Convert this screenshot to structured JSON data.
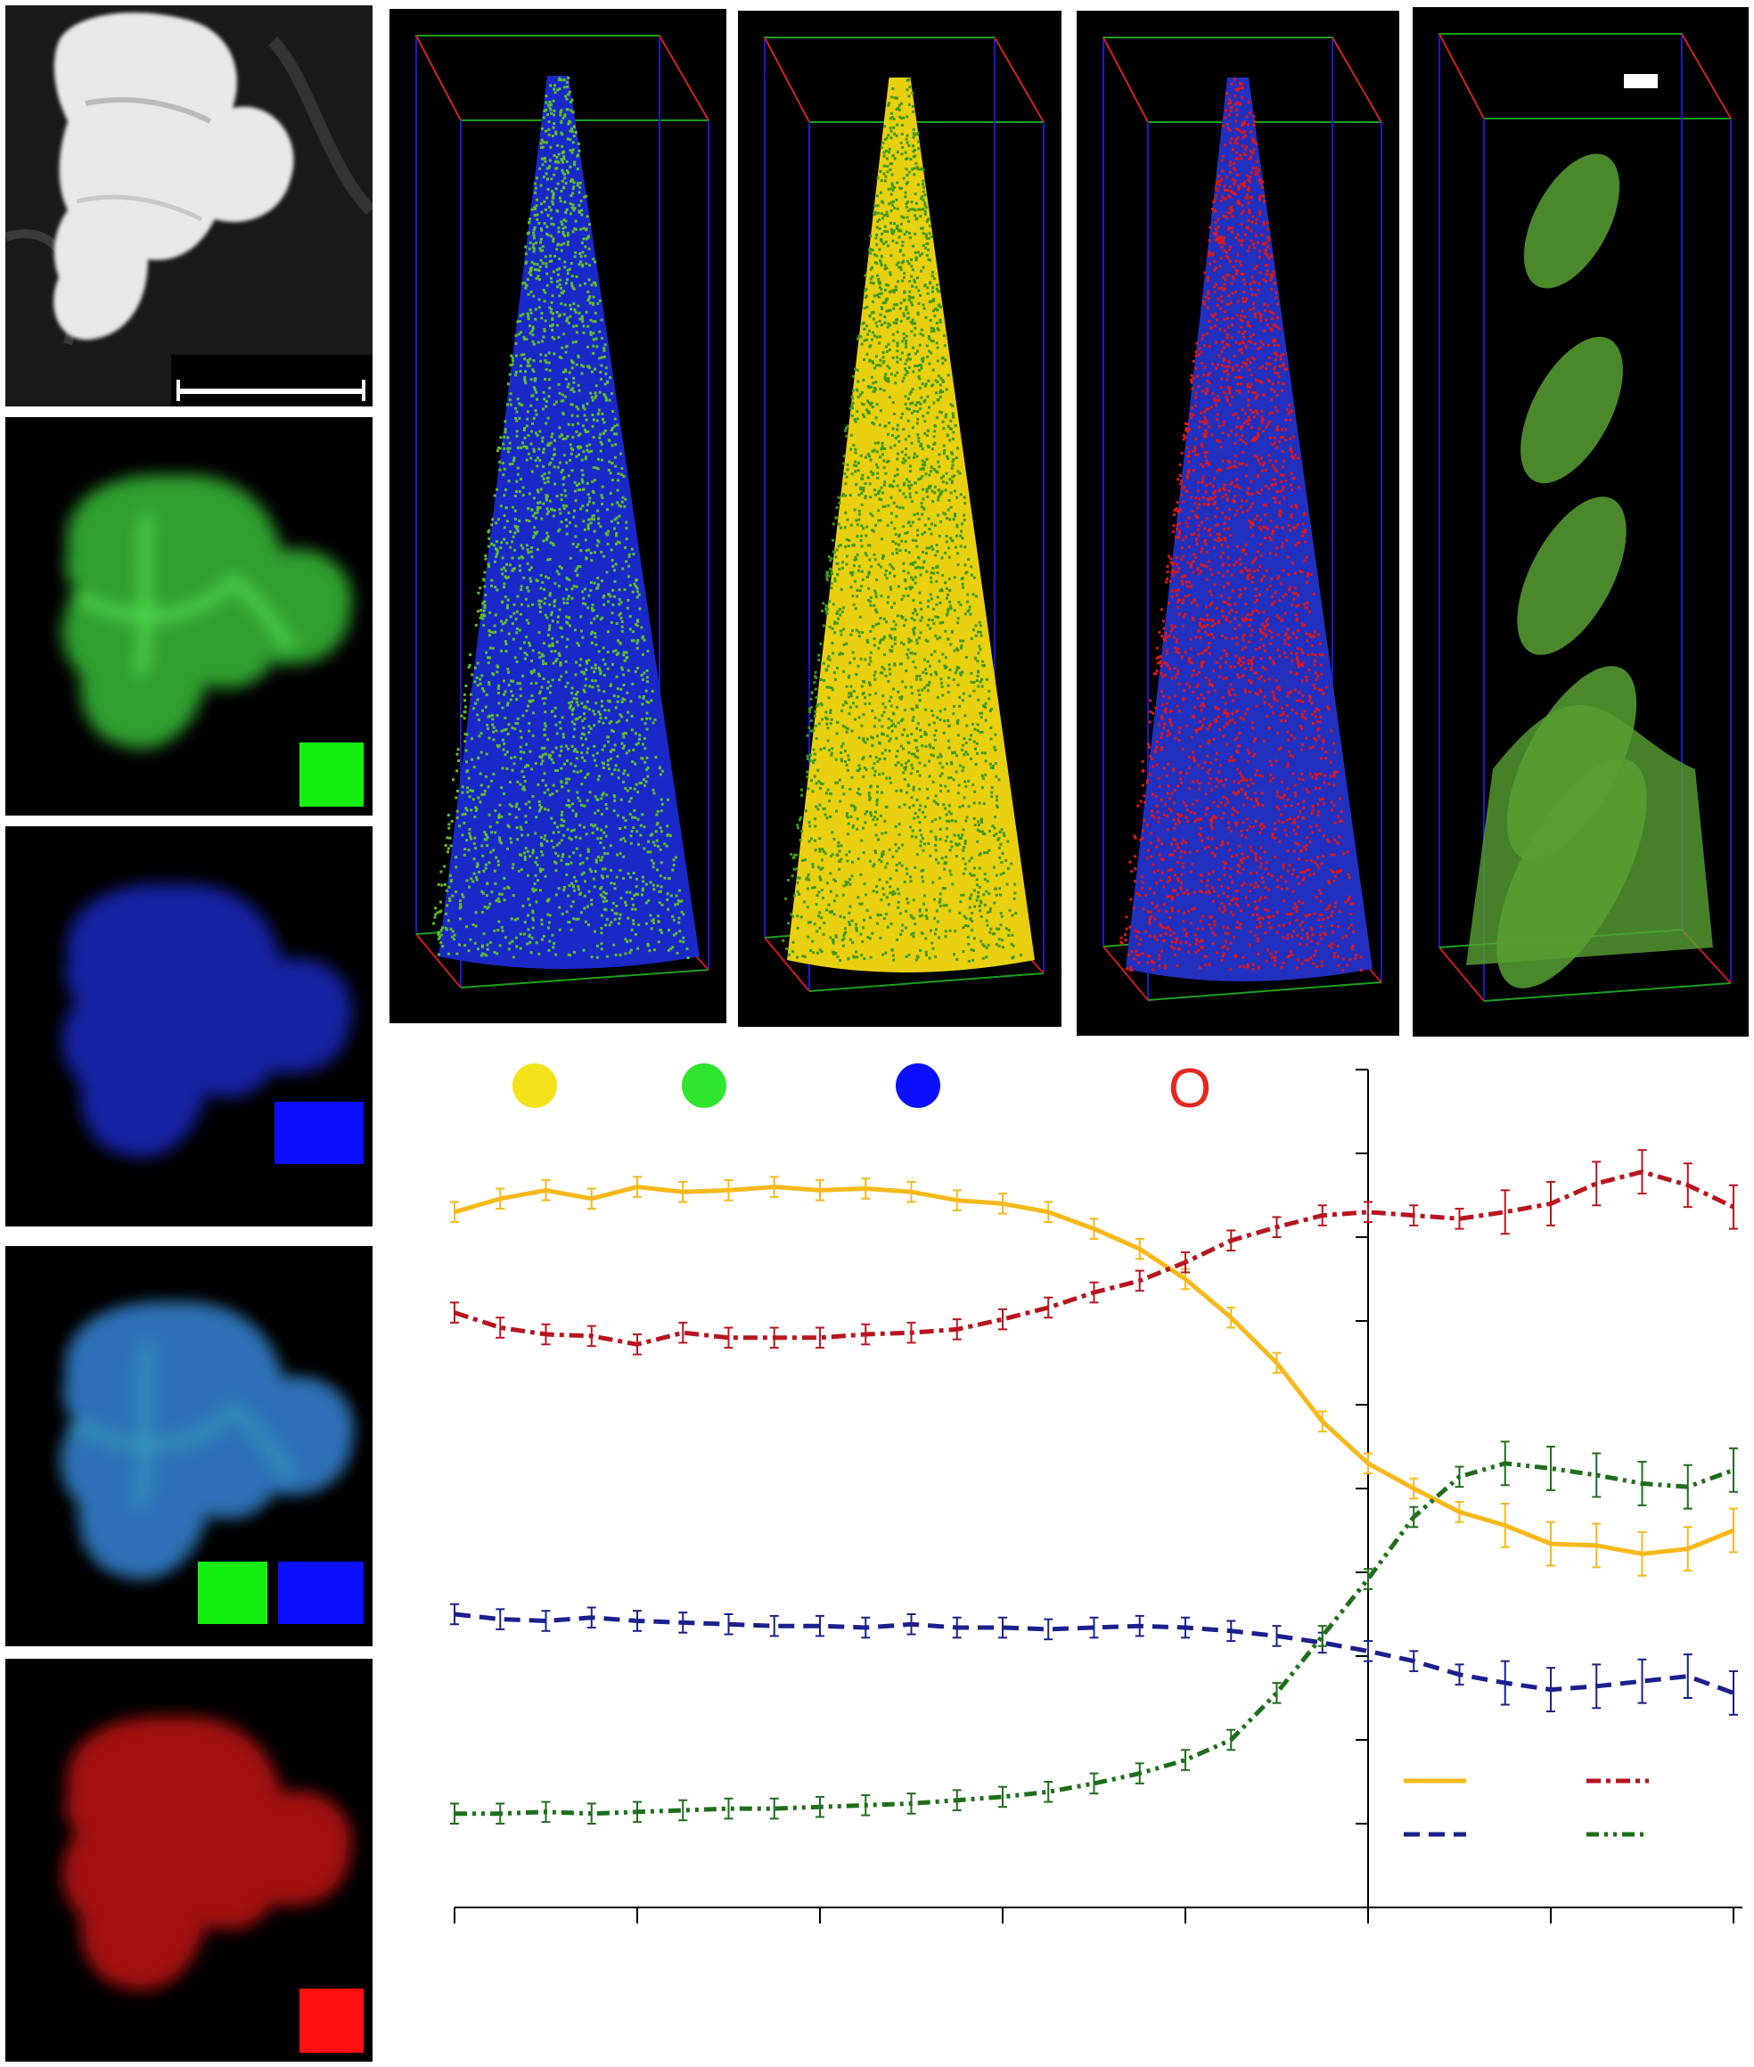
{
  "figure": {
    "left_panels": [
      {
        "id": "sem",
        "kind": "grayscale",
        "swatches": [],
        "has_scale_bar": true
      },
      {
        "id": "green-map",
        "kind": "element-map",
        "tint": "#3fd63f",
        "swatches": [
          "#14f014"
        ]
      },
      {
        "id": "blue-map",
        "kind": "element-map",
        "tint": "#1f2fd8",
        "swatches": [
          "#0a10ff"
        ]
      },
      {
        "id": "overlay-map",
        "kind": "element-map",
        "tint": "#3fa0c8",
        "swatches": [
          "#14f014",
          "#0a10ff"
        ]
      },
      {
        "id": "red-map",
        "kind": "element-map",
        "tint": "#d81818",
        "swatches": [
          "#ff1010"
        ]
      }
    ],
    "reconstructions": [
      {
        "id": "recon-1",
        "base": "#1a28c8",
        "dots": "#5fbf2a"
      },
      {
        "id": "recon-2",
        "base": "#e8d010",
        "dots": "#3f9a18"
      },
      {
        "id": "recon-3",
        "base": "#2230c0",
        "dots": "#e01818"
      },
      {
        "id": "recon-4",
        "base": "#000000",
        "dots": "#58a032",
        "isosurface": true
      }
    ],
    "profile_markers": [
      {
        "type": "dot",
        "color": "#f5e11a"
      },
      {
        "type": "dot",
        "color": "#2ee62e"
      },
      {
        "type": "dot",
        "color": "#0a10ff"
      },
      {
        "type": "text",
        "label": "O",
        "color": "#e8261c"
      }
    ]
  },
  "chart_data": {
    "type": "line",
    "title": "",
    "xlabel": "",
    "ylabel": "",
    "xlim": [
      0,
      70
    ],
    "ylim": [
      0,
      50
    ],
    "x_ticks": [
      0,
      10,
      20,
      30,
      40,
      50,
      60,
      70
    ],
    "y_ticks": [
      0,
      5,
      10,
      15,
      20,
      25,
      30,
      35,
      40,
      45,
      50
    ],
    "y_axis_at_x": 50,
    "legend_position": "bottom-right",
    "series": [
      {
        "style": "solid",
        "color": "#f7b81a",
        "x": [
          0,
          2.5,
          5,
          7.5,
          10,
          12.5,
          15,
          17.5,
          20,
          22.5,
          25,
          27.5,
          30,
          32.5,
          35,
          37.5,
          40,
          42.5,
          45,
          47.5,
          50,
          52.5,
          55,
          57.5,
          60,
          62.5,
          65,
          67.5,
          70
        ],
        "y": [
          41.5,
          42.3,
          42.8,
          42.3,
          43.0,
          42.7,
          42.8,
          43.0,
          42.8,
          42.9,
          42.7,
          42.2,
          42.0,
          41.5,
          40.5,
          39.3,
          37.5,
          35.2,
          32.5,
          29.0,
          26.5,
          25.0,
          23.6,
          22.8,
          21.7,
          21.6,
          21.1,
          21.4,
          22.5
        ]
      },
      {
        "style": "dash-dot",
        "color": "#b8161e",
        "x": [
          0,
          2.5,
          5,
          7.5,
          10,
          12.5,
          15,
          17.5,
          20,
          22.5,
          25,
          27.5,
          30,
          32.5,
          35,
          37.5,
          40,
          42.5,
          45,
          47.5,
          50,
          52.5,
          55,
          57.5,
          60,
          62.5,
          65,
          67.5,
          70
        ],
        "y": [
          35.5,
          34.6,
          34.2,
          34.1,
          33.6,
          34.3,
          34.0,
          34.0,
          34.0,
          34.2,
          34.3,
          34.5,
          35.1,
          35.8,
          36.7,
          37.4,
          38.5,
          39.8,
          40.6,
          41.3,
          41.5,
          41.3,
          41.1,
          41.5,
          42.0,
          43.2,
          43.9,
          43.1,
          41.8
        ]
      },
      {
        "style": "dashed",
        "color": "#1a208c",
        "x": [
          0,
          2.5,
          5,
          7.5,
          10,
          12.5,
          15,
          17.5,
          20,
          22.5,
          25,
          27.5,
          30,
          32.5,
          35,
          37.5,
          40,
          42.5,
          45,
          47.5,
          50,
          52.5,
          55,
          57.5,
          60,
          62.5,
          65,
          67.5,
          70
        ],
        "y": [
          17.5,
          17.2,
          17.1,
          17.3,
          17.1,
          17.0,
          16.9,
          16.8,
          16.8,
          16.7,
          16.9,
          16.7,
          16.7,
          16.6,
          16.7,
          16.8,
          16.7,
          16.5,
          16.2,
          15.8,
          15.3,
          14.7,
          13.9,
          13.4,
          13.0,
          13.2,
          13.5,
          13.8,
          12.8
        ]
      },
      {
        "style": "dash-dot-dot",
        "color": "#1f6e1c",
        "x": [
          0,
          2.5,
          5,
          7.5,
          10,
          12.5,
          15,
          17.5,
          20,
          22.5,
          25,
          27.5,
          30,
          32.5,
          35,
          37.5,
          40,
          42.5,
          45,
          47.5,
          50,
          52.5,
          55,
          57.5,
          60,
          62.5,
          65,
          67.5,
          70
        ],
        "y": [
          5.6,
          5.6,
          5.7,
          5.6,
          5.7,
          5.8,
          5.9,
          5.9,
          6.0,
          6.1,
          6.2,
          6.4,
          6.6,
          6.9,
          7.4,
          8.0,
          8.8,
          10.0,
          12.8,
          16.2,
          19.6,
          23.3,
          25.7,
          26.5,
          26.2,
          25.8,
          25.3,
          25.1,
          26.1
        ]
      }
    ]
  }
}
